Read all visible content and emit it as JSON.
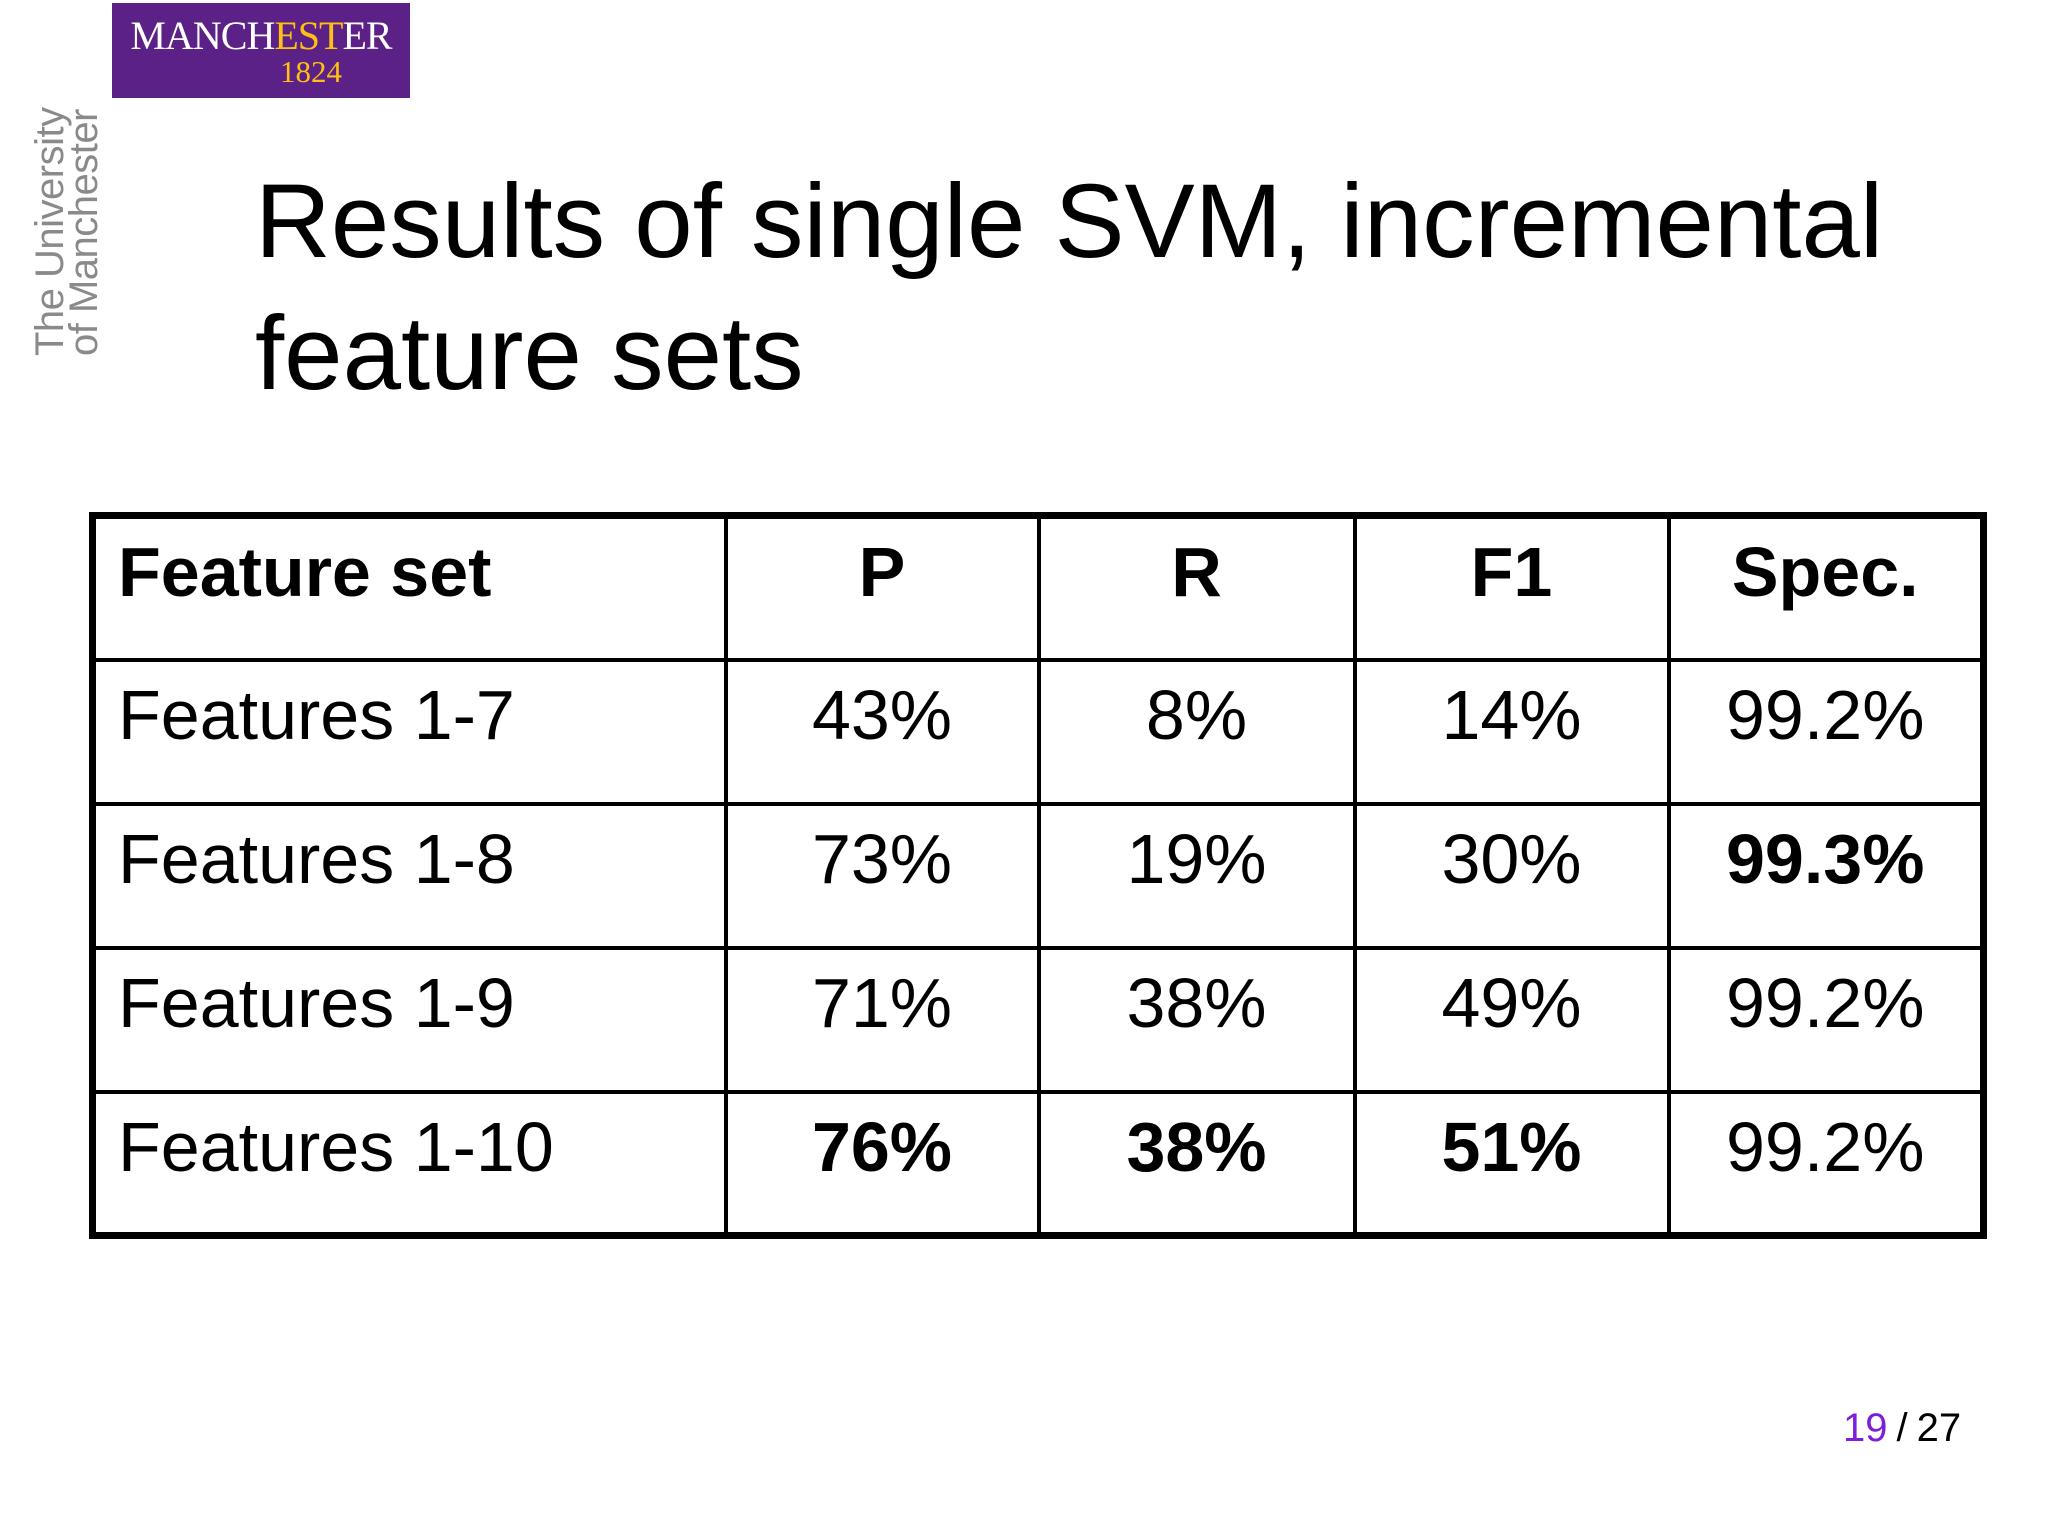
{
  "theme": {
    "logo-purple": "#5c2186",
    "logo-gold": "#fdc013",
    "tagline-gray": "#8a8a8a",
    "page-number-purple": "#7e1ed8"
  },
  "logo": {
    "wordmark_prefix": "MANCH",
    "wordmark_accent": "EST",
    "wordmark_suffix": "ER",
    "year": "1824",
    "tagline_line1": "The University",
    "tagline_line2": "of Manchester"
  },
  "slide": {
    "title_lines": [
      "Results of single SVM, incremental",
      "feature sets"
    ]
  },
  "table": {
    "headers": [
      "Feature set",
      "P",
      "R",
      "F1",
      "Spec."
    ],
    "rows": [
      {
        "cells": [
          "Features 1-7",
          "43%",
          "8%",
          "14%",
          "99.2%"
        ]
      },
      {
        "cells": [
          "Features 1-8",
          "73%",
          "19%",
          "30%",
          "99.3%"
        ]
      },
      {
        "cells": [
          "Features 1-9",
          "71%",
          "38%",
          "49%",
          "99.2%"
        ]
      },
      {
        "cells": [
          "Features 1-10",
          "76%",
          "38%",
          "51%",
          "99.2%"
        ]
      }
    ]
  },
  "footer": {
    "page_current": "19",
    "separator": "/",
    "page_total": "27"
  }
}
